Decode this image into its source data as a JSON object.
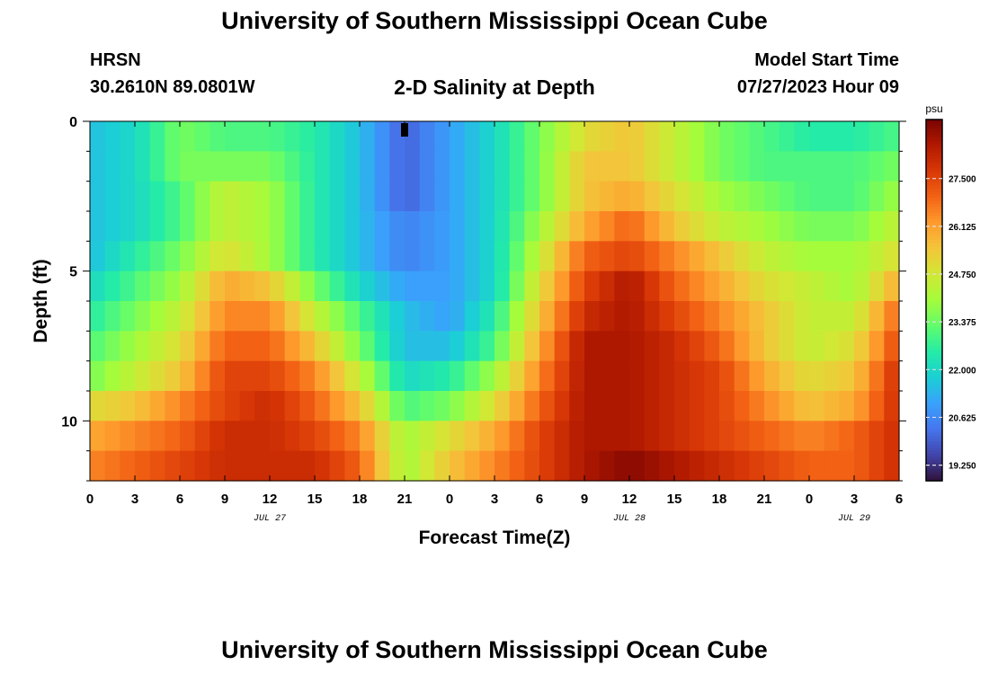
{
  "header": {
    "title": "University of Southern Mississippi Ocean Cube",
    "station": "HRSN",
    "coordinates": "30.2610N  89.0801W",
    "subtitle": "2-D Salinity at Depth",
    "model_start_label": "Model Start Time",
    "model_start_value": "07/27/2023 Hour 09"
  },
  "footer": {
    "title": "University of Southern Mississippi Ocean Cube"
  },
  "chart_data": {
    "type": "heatmap",
    "variable_unit": "psu",
    "xlabel": "Forecast Time(Z)",
    "ylabel": "Depth (ft)",
    "x_hours": [
      0,
      3,
      6,
      9,
      12,
      15,
      18,
      21,
      24,
      27,
      30,
      33,
      36,
      39,
      42,
      45,
      48,
      51,
      54
    ],
    "x_tick_labels": [
      "0",
      "3",
      "6",
      "9",
      "12",
      "15",
      "18",
      "21",
      "0",
      "3",
      "6",
      "9",
      "12",
      "15",
      "18",
      "21",
      "0",
      "3",
      "6"
    ],
    "date_labels": [
      {
        "label": "JUL 27",
        "hour": 12
      },
      {
        "label": "JUL 28",
        "hour": 36
      },
      {
        "label": "JUL 29",
        "hour": 51
      }
    ],
    "y_tick_labels": [
      "0",
      "5",
      "10"
    ],
    "y_tick_values": [
      0,
      5,
      10
    ],
    "ylim": [
      0,
      12
    ],
    "xlim": [
      0,
      54
    ],
    "colorbar": {
      "label": "psu",
      "range": [
        18.8,
        29.2
      ],
      "tick_values": [
        19.25,
        20.625,
        22.0,
        23.375,
        24.75,
        26.125,
        27.5
      ],
      "tick_labels": [
        "19.250",
        "20.625",
        "22.000",
        "23.375",
        "24.750",
        "26.125",
        "27.500"
      ],
      "colors": [
        "#30123b",
        "#4145ab",
        "#4675ed",
        "#39a2fc",
        "#1bcfd4",
        "#24eca6",
        "#61fc6c",
        "#a4fc3b",
        "#d1e834",
        "#f3c63a",
        "#fe9b2d",
        "#f36315",
        "#d93806",
        "#b11901",
        "#7a0402"
      ]
    },
    "depth_rows": [
      0.5,
      1.5,
      2.5,
      3.5,
      4.5,
      5.5,
      6.5,
      7.5,
      8.5,
      9.5,
      10.5,
      11.5
    ],
    "time_columns": [
      0,
      3,
      6,
      9,
      12,
      15,
      18,
      21,
      24,
      27,
      30,
      33,
      36,
      39,
      42,
      45,
      48,
      51,
      54
    ],
    "salinity_psu": [
      [
        21.5,
        22.0,
        23.5,
        23.0,
        23.0,
        22.5,
        21.5,
        20.0,
        21.0,
        22.0,
        23.5,
        25.0,
        25.5,
        24.5,
        23.5,
        23.0,
        22.5,
        22.5,
        23.0
      ],
      [
        21.5,
        22.0,
        23.5,
        23.5,
        23.5,
        22.5,
        21.5,
        20.0,
        21.0,
        22.0,
        23.5,
        25.5,
        25.5,
        24.5,
        23.5,
        23.0,
        23.0,
        23.0,
        23.5
      ],
      [
        21.5,
        22.0,
        23.0,
        24.5,
        24.0,
        22.5,
        21.5,
        20.0,
        21.0,
        22.0,
        23.5,
        25.5,
        26.0,
        25.0,
        24.0,
        23.5,
        23.0,
        23.0,
        24.0
      ],
      [
        21.5,
        22.0,
        23.0,
        24.5,
        24.0,
        22.5,
        21.5,
        20.5,
        21.0,
        22.0,
        24.0,
        26.0,
        27.0,
        25.5,
        24.5,
        24.0,
        23.5,
        23.5,
        24.5
      ],
      [
        21.5,
        22.5,
        23.5,
        25.0,
        24.0,
        22.5,
        21.5,
        20.5,
        21.0,
        22.0,
        24.5,
        27.0,
        27.5,
        26.5,
        25.5,
        24.5,
        24.0,
        24.0,
        25.0
      ],
      [
        22.0,
        23.0,
        24.0,
        26.0,
        25.5,
        23.5,
        22.0,
        21.0,
        21.0,
        22.0,
        25.0,
        27.5,
        28.5,
        27.0,
        26.0,
        25.0,
        24.5,
        24.0,
        26.0
      ],
      [
        22.5,
        23.5,
        24.5,
        26.5,
        26.5,
        24.5,
        23.0,
        21.5,
        21.0,
        22.5,
        25.5,
        28.0,
        28.5,
        27.5,
        26.5,
        25.5,
        24.5,
        24.5,
        27.0
      ],
      [
        23.0,
        24.0,
        25.0,
        27.0,
        27.0,
        25.5,
        23.5,
        21.5,
        21.5,
        23.0,
        26.0,
        28.5,
        28.5,
        28.0,
        27.0,
        25.5,
        24.5,
        25.0,
        27.5
      ],
      [
        23.5,
        24.5,
        25.5,
        27.5,
        27.5,
        26.5,
        24.5,
        22.0,
        22.5,
        24.0,
        26.5,
        28.5,
        28.5,
        28.0,
        27.5,
        26.0,
        25.0,
        25.5,
        28.0
      ],
      [
        25.0,
        25.5,
        26.5,
        27.5,
        28.0,
        27.0,
        25.5,
        23.0,
        23.5,
        25.0,
        27.0,
        28.5,
        28.5,
        28.0,
        27.5,
        26.5,
        25.5,
        26.0,
        28.0
      ],
      [
        26.0,
        26.5,
        27.0,
        28.0,
        28.0,
        27.5,
        26.5,
        24.0,
        25.0,
        26.0,
        27.5,
        28.5,
        28.5,
        28.0,
        27.5,
        27.0,
        26.5,
        27.0,
        28.0
      ],
      [
        26.5,
        27.0,
        27.5,
        28.0,
        28.0,
        28.0,
        27.0,
        24.0,
        25.5,
        26.5,
        27.5,
        28.5,
        29.0,
        28.5,
        28.0,
        27.5,
        27.0,
        27.0,
        28.0
      ]
    ]
  }
}
